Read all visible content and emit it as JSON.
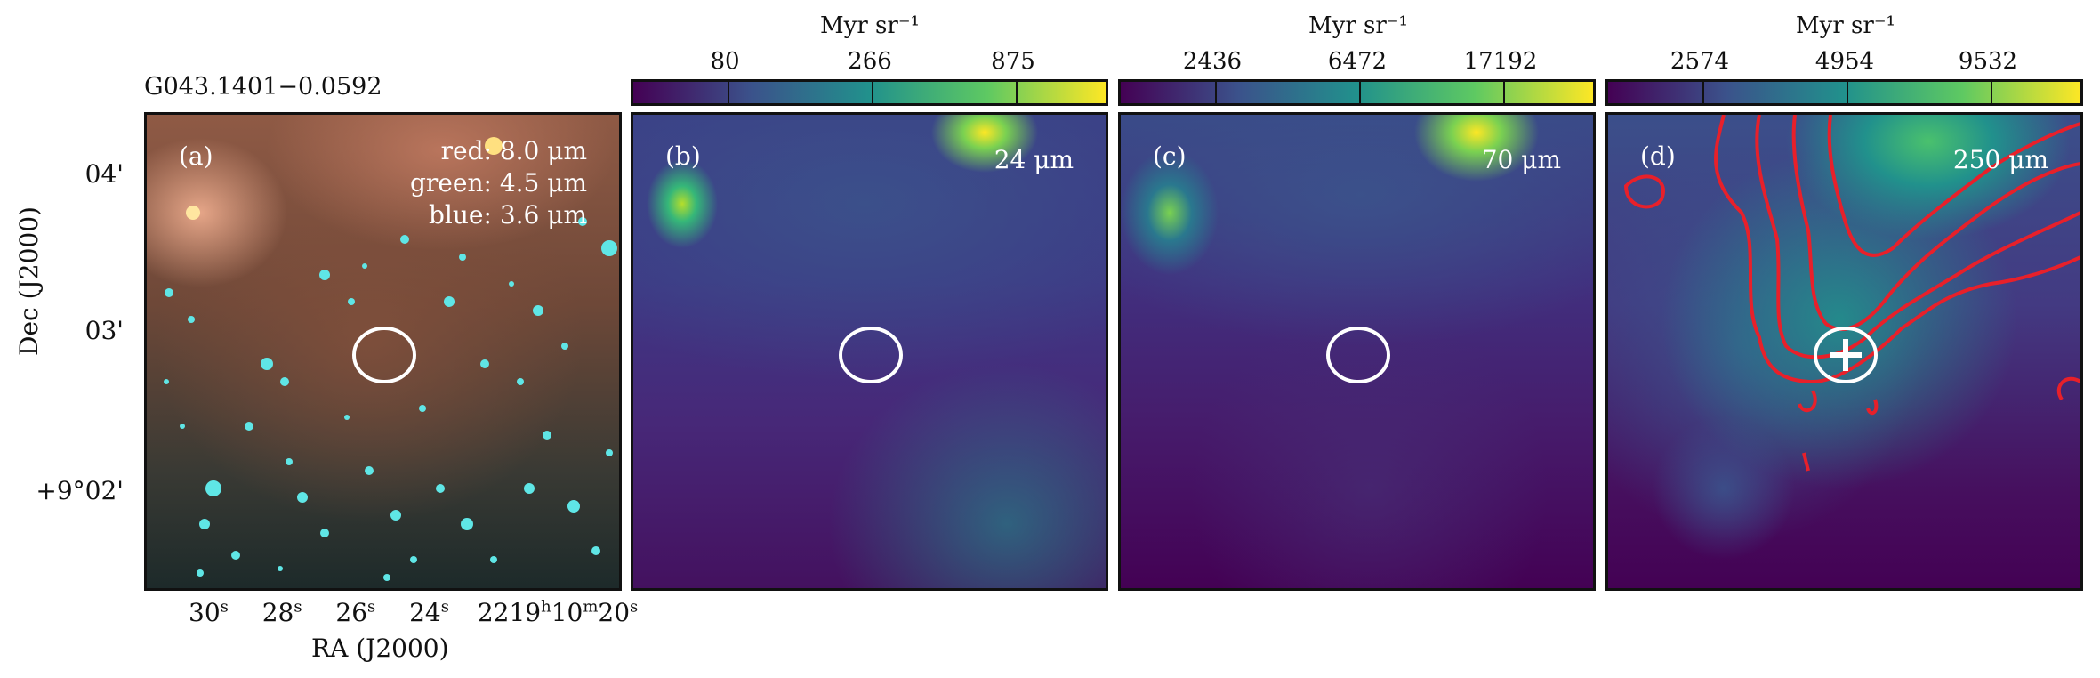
{
  "figure": {
    "source_name": "G043.1401−0.0592",
    "y_axis_label": "Dec (J2000)",
    "x_axis_label": "RA (J2000)",
    "dec_ticks": [
      "04'",
      "03'",
      "+9°02'"
    ],
    "ra_ticks": [
      {
        "value": "30",
        "sup": "s"
      },
      {
        "value": "28",
        "sup": "s"
      },
      {
        "value": "26",
        "sup": "s"
      },
      {
        "value": "24",
        "sup": "s"
      },
      {
        "value": "22",
        "sup": ""
      },
      {
        "value": "19",
        "sup": "h"
      },
      {
        "value": "10",
        "sup": "m"
      },
      {
        "value": "20",
        "sup": "s"
      }
    ]
  },
  "panels": [
    {
      "letter": "(a)",
      "bands": [
        "red: 8.0 μm",
        "green: 4.5 μm",
        "blue: 3.6 μm"
      ]
    },
    {
      "letter": "(b)",
      "band": "24 μm",
      "colorbar": {
        "unit": "Myr sr⁻¹",
        "ticks": [
          "80",
          "266",
          "875"
        ]
      }
    },
    {
      "letter": "(c)",
      "band": "70 μm",
      "colorbar": {
        "unit": "Myr sr⁻¹",
        "ticks": [
          "2436",
          "6472",
          "17192"
        ]
      }
    },
    {
      "letter": "(d)",
      "band": "250 μm",
      "colorbar": {
        "unit": "Myr sr⁻¹",
        "ticks": [
          "2574",
          "4954",
          "9532"
        ]
      }
    }
  ],
  "colors": {
    "viridis_dark": "#440154",
    "viridis_mid": "#3b528b",
    "contour": "#e8202a",
    "marker": "#ffffff"
  }
}
